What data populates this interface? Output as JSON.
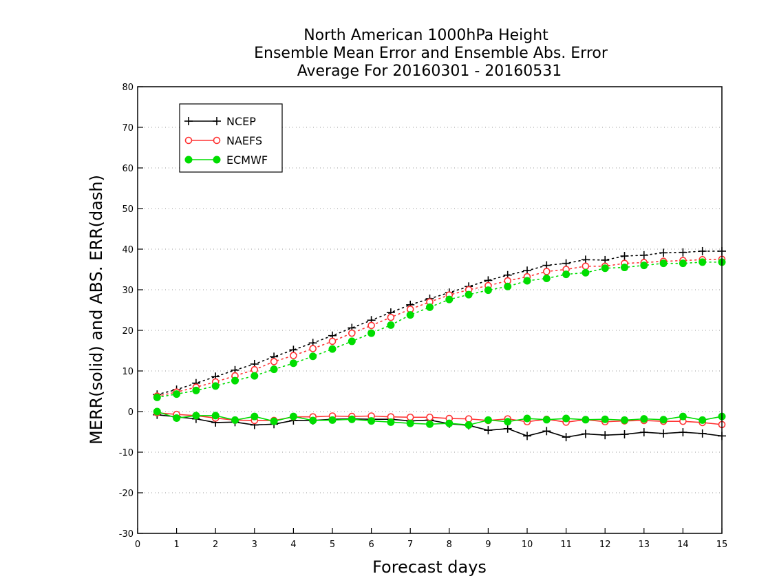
{
  "chart_data": {
    "type": "line",
    "title": [
      "North American 1000hPa Height",
      "Ensemble Mean Error and Ensemble Abs. Error",
      "Average For 20160301 - 20160531"
    ],
    "xlabel": "Forecast days",
    "ylabel": "MERR(solid) and ABS. ERR(dash)",
    "xlim": [
      0,
      15
    ],
    "ylim": [
      -30,
      80
    ],
    "xticks": [
      0,
      1,
      2,
      3,
      4,
      5,
      6,
      7,
      8,
      9,
      10,
      11,
      12,
      13,
      14,
      15
    ],
    "yticks": [
      -30,
      -20,
      -10,
      0,
      10,
      20,
      30,
      40,
      50,
      60,
      70,
      80
    ],
    "grid": "horizontal dotted",
    "legend_position": "top-left",
    "x": [
      0.5,
      1,
      1.5,
      2,
      2.5,
      3,
      3.5,
      4,
      4.5,
      5,
      5.5,
      6,
      6.5,
      7,
      7.5,
      8,
      8.5,
      9,
      9.5,
      10,
      10.5,
      11,
      11.5,
      12,
      12.5,
      13,
      13.5,
      14,
      14.5,
      15
    ],
    "series": [
      {
        "name": "NCEP",
        "color": "#000000",
        "marker": "plus",
        "abs_err": [
          4.2,
          5.4,
          7.0,
          8.6,
          10.2,
          11.7,
          13.5,
          15.2,
          16.9,
          18.7,
          20.6,
          22.5,
          24.4,
          26.3,
          27.8,
          29.3,
          30.8,
          32.3,
          33.6,
          34.7,
          36.0,
          36.5,
          37.4,
          37.3,
          38.3,
          38.5,
          39.1,
          39.2,
          39.5,
          39.5
        ],
        "mean_err": [
          -0.8,
          -1.3,
          -1.8,
          -2.7,
          -2.6,
          -3.3,
          -3.1,
          -2.2,
          -2.2,
          -1.9,
          -1.8,
          -1.9,
          -1.9,
          -2.3,
          -2.1,
          -3.0,
          -3.4,
          -4.6,
          -4.2,
          -6.0,
          -4.8,
          -6.3,
          -5.5,
          -5.8,
          -5.6,
          -5.1,
          -5.4,
          -5.1,
          -5.4,
          -6.0
        ]
      },
      {
        "name": "NAEFS",
        "color": "#ff3333",
        "marker": "open-circle",
        "abs_err": [
          3.8,
          4.8,
          6.0,
          7.3,
          8.8,
          10.3,
          12.3,
          13.8,
          15.5,
          17.3,
          19.3,
          21.2,
          23.2,
          25.2,
          27.0,
          28.7,
          30.0,
          31.0,
          32.2,
          33.2,
          34.5,
          35.0,
          35.8,
          35.8,
          36.5,
          36.7,
          37.0,
          37.2,
          37.4,
          37.5
        ],
        "mean_err": [
          -0.3,
          -0.7,
          -1.0,
          -1.6,
          -2.1,
          -2.2,
          -2.2,
          -1.3,
          -1.3,
          -1.1,
          -1.2,
          -1.1,
          -1.3,
          -1.4,
          -1.4,
          -1.7,
          -1.8,
          -2.2,
          -1.8,
          -2.5,
          -1.9,
          -2.6,
          -2.0,
          -2.5,
          -2.3,
          -2.2,
          -2.4,
          -2.4,
          -2.7,
          -3.2
        ]
      },
      {
        "name": "ECMWF",
        "color": "#00dd00",
        "marker": "filled-circle",
        "abs_err": [
          3.5,
          4.3,
          5.2,
          6.3,
          7.6,
          8.8,
          10.4,
          11.9,
          13.6,
          15.4,
          17.3,
          19.3,
          21.3,
          23.8,
          25.7,
          27.6,
          28.8,
          29.9,
          30.8,
          32.2,
          32.8,
          33.8,
          34.2,
          35.3,
          35.5,
          36.0,
          36.5,
          36.5,
          36.8,
          36.8
        ],
        "mean_err": [
          0.0,
          -1.6,
          -1.0,
          -1.0,
          -2.1,
          -1.2,
          -2.4,
          -1.2,
          -2.2,
          -2.1,
          -1.9,
          -2.3,
          -2.6,
          -2.9,
          -3.1,
          -2.9,
          -3.3,
          -2.1,
          -2.5,
          -1.7,
          -2.0,
          -1.7,
          -2.0,
          -1.9,
          -2.1,
          -1.8,
          -2.0,
          -1.2,
          -2.1,
          -1.2
        ]
      }
    ]
  }
}
